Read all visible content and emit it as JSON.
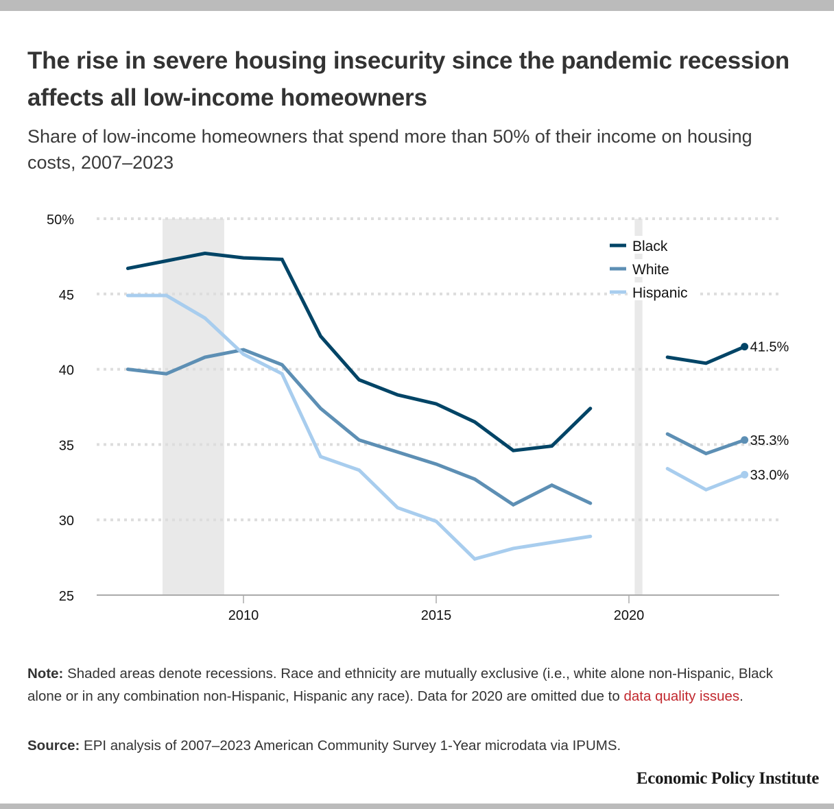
{
  "header": {
    "title": "The rise in severe housing insecurity since the pandemic recession affects all low-income homeowners",
    "subtitle": "Share of low-income homeowners that spend more than 50% of their income on housing costs, 2007–2023"
  },
  "footer": {
    "note_label": "Note:",
    "note_text": " Shaded areas denote recessions. Race and ethnicity are mutually exclusive (i.e., white alone non-Hispanic, Black alone or in any combination non-Hispanic, Hispanic any race). Data for 2020 are omitted due to ",
    "note_link": "data quality issues",
    "note_end": ".",
    "source_label": "Source:",
    "source_text": " EPI analysis of 2007–2023 American Community Survey 1-Year microdata via IPUMS.",
    "logo": "Economic Policy Institute"
  },
  "chart_data": {
    "type": "line",
    "title": "The rise in severe housing insecurity since the pandemic recession affects all low-income homeowners",
    "subtitle": "Share of low-income homeowners that spend more than 50% of their income on housing costs, 2007–2023",
    "xlabel": "",
    "ylabel": "",
    "x": [
      2007,
      2008,
      2009,
      2010,
      2011,
      2012,
      2013,
      2014,
      2015,
      2016,
      2017,
      2018,
      2019,
      2020,
      2021,
      2022,
      2023
    ],
    "xlim": [
      2006.4,
      2023.8
    ],
    "ylim": [
      25,
      50
    ],
    "y_ticks": [
      25,
      30,
      35,
      40,
      45,
      50
    ],
    "y_tick_labels": [
      "25",
      "30",
      "35",
      "40",
      "45",
      "50%"
    ],
    "x_ticks": [
      2010,
      2015,
      2020
    ],
    "x_tick_labels": [
      "2010",
      "2015",
      "2020"
    ],
    "grid": "horizontal dotted",
    "legend_position": "top-right",
    "recessions": [
      {
        "start": 2007.9,
        "end": 2009.5
      },
      {
        "start": 2020.15,
        "end": 2020.35
      }
    ],
    "series": [
      {
        "name": "Black",
        "color": "#004466",
        "values": [
          46.7,
          47.2,
          47.7,
          47.4,
          47.3,
          42.2,
          39.3,
          38.3,
          37.7,
          36.5,
          34.6,
          34.9,
          37.4,
          null,
          40.8,
          40.4,
          41.5
        ],
        "end_label": "41.5%"
      },
      {
        "name": "White",
        "color": "#5d8fb4",
        "values": [
          40.0,
          39.7,
          40.8,
          41.3,
          40.3,
          37.4,
          35.3,
          34.5,
          33.7,
          32.7,
          31.0,
          32.3,
          31.1,
          null,
          35.7,
          34.4,
          35.3
        ],
        "end_label": "35.3%"
      },
      {
        "name": "Hispanic",
        "color": "#a8cdee",
        "values": [
          44.9,
          44.9,
          43.4,
          41.0,
          39.7,
          34.2,
          33.3,
          30.8,
          29.9,
          27.4,
          28.1,
          28.5,
          28.9,
          null,
          33.4,
          32.0,
          33.0
        ],
        "end_label": "33.0%"
      }
    ],
    "notes": "Data for 2020 are omitted due to data quality issues."
  }
}
